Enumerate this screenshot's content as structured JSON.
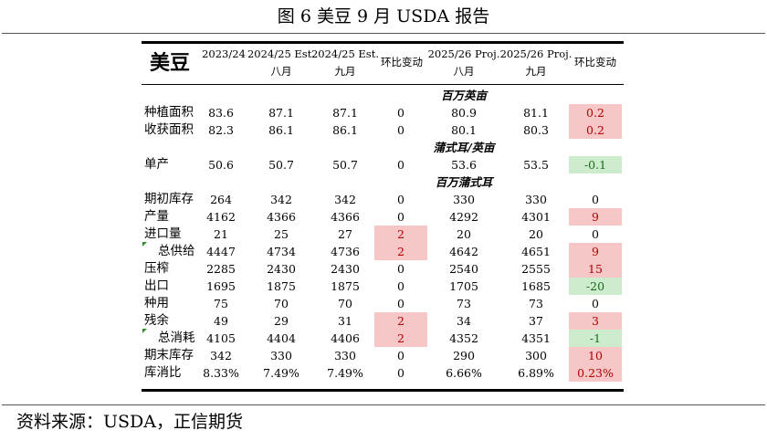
{
  "figure_title": "图 6  美豆 9 月 USDA 报告",
  "source": "资料来源：USDA，正信期货",
  "table": {
    "brand": "美豆",
    "headers": [
      {
        "line1": "2023/24",
        "line2": ""
      },
      {
        "line1": "2024/25 Est.",
        "line2": "八月"
      },
      {
        "line1": "2024/25 Est.",
        "line2": "九月"
      },
      {
        "line1": "环比变动",
        "line2": ""
      },
      {
        "line1": "2025/26 Proj.",
        "line2": "八月"
      },
      {
        "line1": "2025/26 Proj.",
        "line2": "九月"
      },
      {
        "line1": "环比变动",
        "line2": ""
      }
    ],
    "units": [
      "百万英亩",
      "蒲式耳/英亩",
      "百万蒲式耳"
    ],
    "rows": [
      {
        "label": "种植面积",
        "values": [
          "83.6",
          "87.1",
          "87.1",
          "0",
          "80.9",
          "81.1",
          "0.2"
        ]
      },
      {
        "label": "收获面积",
        "values": [
          "82.3",
          "86.1",
          "86.1",
          "0",
          "80.1",
          "80.3",
          "0.2"
        ]
      },
      {
        "label": "单产",
        "values": [
          "50.6",
          "50.7",
          "50.7",
          "0",
          "53.6",
          "53.5",
          "-0.1"
        ]
      },
      {
        "label": "期初库存",
        "values": [
          "264",
          "342",
          "342",
          "0",
          "330",
          "330",
          "0"
        ]
      },
      {
        "label": "产量",
        "values": [
          "4162",
          "4366",
          "4366",
          "0",
          "4292",
          "4301",
          "9"
        ]
      },
      {
        "label": "进口量",
        "values": [
          "21",
          "25",
          "27",
          "2",
          "20",
          "20",
          "0"
        ]
      },
      {
        "label": "总供给",
        "values": [
          "4447",
          "4734",
          "4736",
          "2",
          "4642",
          "4651",
          "9"
        ]
      },
      {
        "label": "压榨",
        "values": [
          "2285",
          "2430",
          "2430",
          "0",
          "2540",
          "2555",
          "15"
        ]
      },
      {
        "label": "出口",
        "values": [
          "1695",
          "1875",
          "1875",
          "0",
          "1705",
          "1685",
          "-20"
        ]
      },
      {
        "label": "种用",
        "values": [
          "75",
          "70",
          "70",
          "0",
          "73",
          "73",
          "0"
        ]
      },
      {
        "label": "残余",
        "values": [
          "49",
          "29",
          "31",
          "2",
          "34",
          "37",
          "3"
        ]
      },
      {
        "label": "总消耗",
        "values": [
          "4105",
          "4404",
          "4406",
          "2",
          "4352",
          "4351",
          "-1"
        ]
      },
      {
        "label": "期末库存",
        "values": [
          "342",
          "330",
          "330",
          "0",
          "290",
          "300",
          "10"
        ]
      },
      {
        "label": "库消比",
        "values": [
          "8.33%",
          "7.49%",
          "7.49%",
          "0",
          "6.66%",
          "6.89%",
          "0.23%"
        ]
      }
    ],
    "highlight_colors": {
      "increase": "#f7c6c6",
      "decrease": "#cdeccd"
    }
  }
}
